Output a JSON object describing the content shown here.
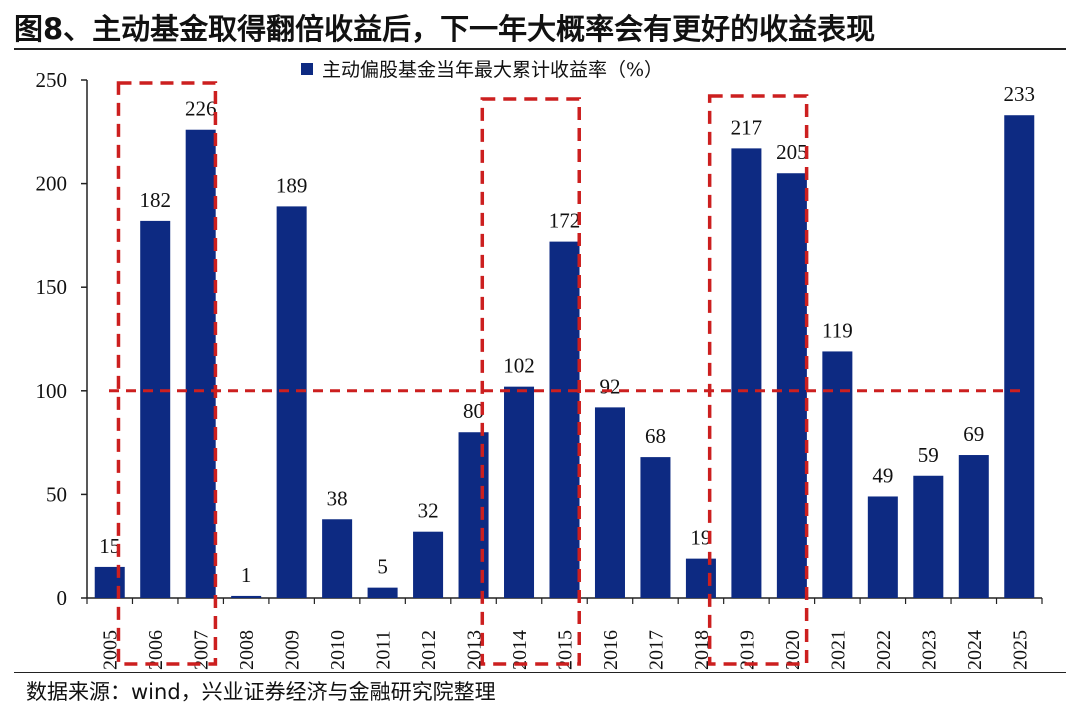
{
  "header": {
    "title": "图8、主动基金取得翻倍收益后，下一年大概率会有更好的收益表现"
  },
  "footer": {
    "source": "数据来源：wind，兴业证券经济与金融研究院整理"
  },
  "colors": {
    "bar": "#0d2a82",
    "highlight": "#cc1f1f",
    "axis": "#222222"
  },
  "chart_data": {
    "type": "bar",
    "title": "",
    "legend": [
      "主动偏股基金当年最大累计收益率（%）"
    ],
    "legend_position": "top-center",
    "categories": [
      "2005",
      "2006",
      "2007",
      "2008",
      "2009",
      "2010",
      "2011",
      "2012",
      "2013",
      "2014",
      "2015",
      "2016",
      "2017",
      "2018",
      "2019",
      "2020",
      "2021",
      "2022",
      "2023",
      "2024",
      "2025"
    ],
    "series": [
      {
        "name": "主动偏股基金当年最大累计收益率（%）",
        "values": [
          15,
          182,
          226,
          1,
          189,
          38,
          5,
          32,
          80,
          102,
          172,
          92,
          68,
          19,
          217,
          205,
          119,
          49,
          59,
          69,
          233
        ]
      }
    ],
    "data_labels": [
      "15",
      "182",
      "226",
      "1",
      "189",
      "38",
      "5",
      "32",
      "80",
      "102",
      "172",
      "92",
      "68",
      "19",
      "217",
      "205",
      "119",
      "49",
      "59",
      "69",
      "233"
    ],
    "ylim": [
      0,
      250
    ],
    "yticks": [
      0,
      50,
      100,
      150,
      200,
      250
    ],
    "xlabel": "",
    "ylabel": "",
    "reference_line": {
      "y": 100,
      "style": "dashed"
    },
    "highlight_groups": [
      [
        "2006",
        "2007"
      ],
      [
        "2014",
        "2015"
      ],
      [
        "2019",
        "2020"
      ]
    ]
  }
}
